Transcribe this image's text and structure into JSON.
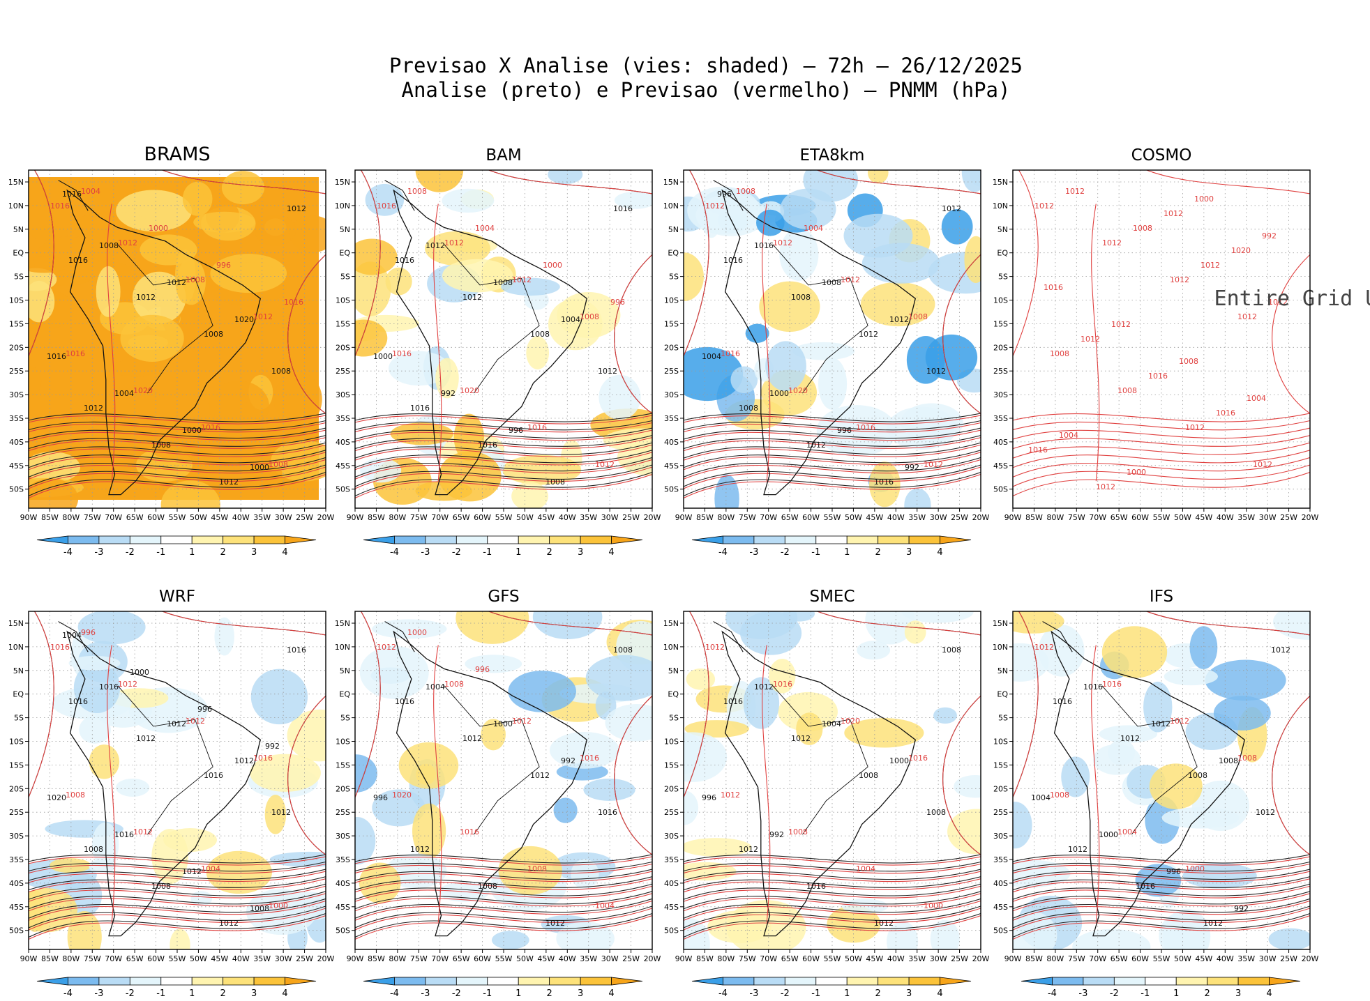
{
  "figure": {
    "title_line1": "Previsao X Analise (vies: shaded) – 72h – 26/12/2025",
    "title_line2": "Analise (preto) e Previsao (vermelho) – PNMM (hPa)"
  },
  "axes": {
    "lat_labels": [
      "15N",
      "10N",
      "5N",
      "EQ",
      "5S",
      "10S",
      "15S",
      "20S",
      "25S",
      "30S",
      "35S",
      "40S",
      "45S",
      "50S"
    ],
    "lon_labels": [
      "90W",
      "85W",
      "80W",
      "75W",
      "70W",
      "65W",
      "60W",
      "55W",
      "50W",
      "45W",
      "40W",
      "35W",
      "30W",
      "25W",
      "20W"
    ]
  },
  "colorbar": {
    "labels": [
      "-4",
      "-3",
      "-2",
      "-1",
      "1",
      "2",
      "3",
      "4"
    ],
    "colors": [
      "#3a9fe8",
      "#7cbbef",
      "#b9dcf5",
      "#e4f5fb",
      "#ffffff",
      "#fff4b0",
      "#fde27a",
      "#fbc33a",
      "#f7a51a"
    ]
  },
  "panels": [
    {
      "name": "BRAMS",
      "shading": "warm",
      "labels_black": [
        "1016",
        "1012",
        "1008",
        "1008",
        "1012",
        "1008",
        "1012",
        "1012",
        "1008",
        "1012",
        "1020",
        "1016",
        "1004",
        "1000",
        "1000",
        "1016"
      ],
      "labels_red": [
        "1016",
        "1012",
        "1008",
        "1012",
        "1016",
        "1020",
        "1016",
        "1008",
        "1004",
        "1000",
        "996",
        "1016"
      ],
      "note": ""
    },
    {
      "name": "BAM",
      "shading": "mixed",
      "labels_black": [
        "1016",
        "1012",
        "1008",
        "1012",
        "1016",
        "1016",
        "1008",
        "1016",
        "1012",
        "1008",
        "1004",
        "1000",
        "992",
        "996"
      ],
      "labels_red": [
        "1016",
        "1012",
        "1012",
        "1008",
        "1016",
        "1020",
        "1016",
        "1012",
        "1008",
        "1004",
        "1000",
        "996"
      ],
      "note": ""
    },
    {
      "name": "ETA8km",
      "shading": "cool",
      "labels_black": [
        "1016",
        "1008",
        "1012",
        "1012",
        "1008",
        "1012",
        "1016",
        "1012",
        "1016",
        "1008",
        "1012",
        "1004",
        "1000",
        "996",
        "992",
        "996"
      ],
      "labels_red": [
        "1012",
        "1012",
        "1012",
        "1008",
        "1016",
        "1020",
        "1016",
        "1012",
        "1008",
        "1004"
      ],
      "note": ""
    },
    {
      "name": "COSMO",
      "shading": "none",
      "labels_black": [],
      "labels_red": [
        "1012",
        "1012",
        "1012",
        "1012",
        "1008",
        "1008",
        "1012",
        "1012",
        "1012",
        "1008",
        "1012",
        "1012",
        "1012",
        "1016",
        "1016",
        "1016",
        "1012",
        "1012",
        "1020",
        "1016",
        "1012",
        "1008",
        "1004",
        "1004",
        "1000",
        "1000",
        "992"
      ],
      "note": "Entire Grid Und"
    },
    {
      "name": "WRF",
      "shading": "lightmix",
      "labels_black": [
        "1016",
        "1012",
        "1016",
        "1012",
        "1008",
        "1008",
        "1012",
        "1016",
        "1016",
        "1012",
        "1012",
        "1020",
        "1016",
        "1012",
        "1008",
        "1004",
        "1000",
        "996",
        "992"
      ],
      "labels_red": [
        "1016",
        "1012",
        "1012",
        "1016",
        "1008",
        "1012",
        "1004",
        "1000",
        "996"
      ],
      "note": ""
    },
    {
      "name": "GFS",
      "shading": "lightcool",
      "labels_black": [
        "1016",
        "1012",
        "1012",
        "1016",
        "1012",
        "1008",
        "1012",
        "1008",
        "1004",
        "1000",
        "992",
        "996"
      ],
      "labels_red": [
        "1012",
        "1008",
        "1012",
        "1016",
        "1020",
        "1016",
        "1008",
        "1004",
        "1000",
        "996"
      ],
      "note": ""
    },
    {
      "name": "SMEC",
      "shading": "lightmix",
      "labels_black": [
        "1016",
        "1012",
        "1008",
        "1008",
        "1012",
        "1016",
        "1012",
        "1008",
        "1012",
        "1004",
        "1000",
        "996",
        "992"
      ],
      "labels_red": [
        "1012",
        "1016",
        "1020",
        "1016",
        "1012",
        "1008",
        "1004",
        "1000"
      ],
      "note": ""
    },
    {
      "name": "IFS",
      "shading": "lightcool",
      "labels_black": [
        "1016",
        "1012",
        "1008",
        "1012",
        "1012",
        "1016",
        "1012",
        "1012",
        "1016",
        "1012",
        "1008",
        "1004",
        "1000",
        "996",
        "992"
      ],
      "labels_red": [
        "1012",
        "1016",
        "1012",
        "1008",
        "1008",
        "1004",
        "1000"
      ],
      "note": ""
    }
  ]
}
